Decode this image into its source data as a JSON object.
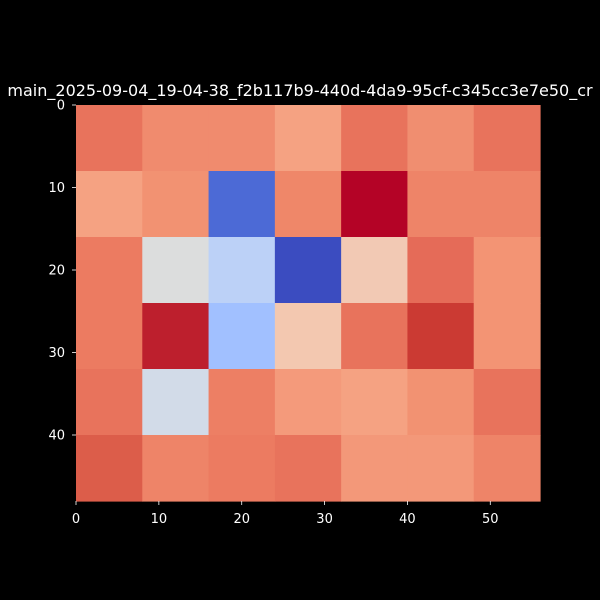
{
  "chart_data": {
    "type": "heatmap",
    "title": "main_2025-09-04_19-04-38_f2b117b9-440d-4da9-95cf-c345cc3e7e50_cr",
    "xlabel": "",
    "ylabel": "",
    "x_range": [
      0,
      56
    ],
    "y_range": [
      0,
      48
    ],
    "x_ticks": [
      "0",
      "10",
      "20",
      "30",
      "40",
      "50"
    ],
    "y_ticks": [
      "0",
      "10",
      "20",
      "30",
      "40"
    ],
    "grid": false,
    "colormap": "coolwarm",
    "cell_colors": [
      [
        "#e8735c",
        "#f08b6e",
        "#f08b6e",
        "#f5a282",
        "#e8735c",
        "#f08e70",
        "#e8735c"
      ],
      [
        "#f5a282",
        "#f29272",
        "#4c6ad6",
        "#ef8769",
        "#b40326",
        "#ee8468",
        "#ee8468"
      ],
      [
        "#ec7b61",
        "#dcdddd",
        "#bcd1f7",
        "#3b4cc0",
        "#f2c9b4",
        "#e56b58",
        "#f39474"
      ],
      [
        "#ec7b61",
        "#bd1f2d",
        "#a1c0ff",
        "#f3c8b0",
        "#e8735c",
        "#cb3a33",
        "#f39474"
      ],
      [
        "#e8735c",
        "#d2dbe8",
        "#ed7f64",
        "#f49a7b",
        "#f5a282",
        "#f29272",
        "#e8735c"
      ],
      [
        "#dc5d4a",
        "#ee8468",
        "#ec7b61",
        "#e8735c",
        "#f39879",
        "#f39879",
        "#ee8468"
      ]
    ]
  }
}
